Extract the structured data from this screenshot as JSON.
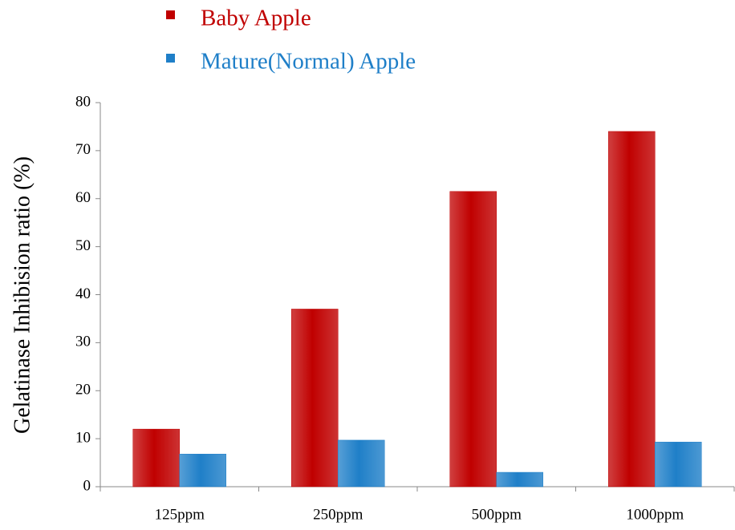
{
  "chart_data": {
    "type": "bar",
    "y_label": "Gelatinase Inhibision ratio (%)",
    "categories": [
      "125ppm",
      "250ppm",
      "500ppm",
      "1000ppm"
    ],
    "series": [
      {
        "name": "Baby Apple",
        "color": "#c00000",
        "values": [
          12,
          37,
          61.5,
          74
        ]
      },
      {
        "name": "Mature(Normal) Apple",
        "color": "#1f7fc8",
        "values": [
          6.8,
          9.7,
          3,
          9.3
        ]
      }
    ],
    "ylim": [
      0,
      80
    ],
    "yticks": [
      0,
      10,
      20,
      30,
      40,
      50,
      60,
      70,
      80
    ],
    "grid": false
  }
}
